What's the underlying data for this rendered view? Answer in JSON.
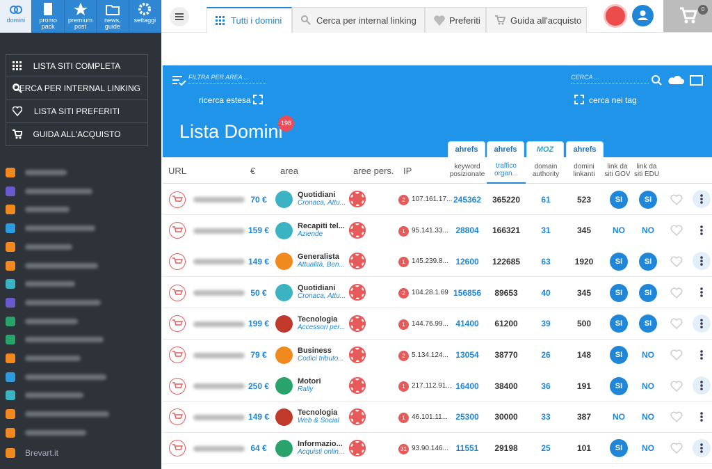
{
  "topnav": [
    "domini",
    "promo pack",
    "premium post",
    "news, guide",
    "settaggi"
  ],
  "menu": [
    "LISTA SITI COMPLETA",
    "CERCA PER INTERNAL LINKING",
    "LISTA SITI PREFERITI",
    "GUIDA ALL'ACQUISTO"
  ],
  "last_site": "Brevart.it",
  "tabs": [
    "Tutti i domini",
    "Cerca per internal linking",
    "Preferiti",
    "Guida all'acquisto"
  ],
  "cart_count": "0",
  "panel": {
    "filter_placeholder": "FILTRA PER AREA ...",
    "extended_search": "ricerca estesa",
    "search_placeholder": "CERCA ...",
    "tag_search": "cerca nei tag",
    "title": "Lista Domini",
    "count": "198"
  },
  "badges": [
    "ahrefs",
    "ahrefs",
    "MOZ",
    "ahrefs"
  ],
  "columns": [
    "URL",
    "€",
    "area",
    "aree pers.",
    "IP",
    "keyword posizionate",
    "traffico organ...",
    "domain authority",
    "domini linkanti",
    "link da siti GOV",
    "link da siti EDU"
  ],
  "rows": [
    [
      "70 €",
      "Quotidiani",
      "Cronaca, Attu...",
      "2",
      "107.161.17...",
      "245362",
      "365220",
      "61",
      "523",
      "SI",
      "SI"
    ],
    [
      "159 €",
      "Recapiti tel...",
      "Aziende",
      "1",
      "95.141.33...",
      "28804",
      "166321",
      "31",
      "345",
      "NO",
      "NO"
    ],
    [
      "149 €",
      "Generalista",
      "Attualità, Ben...",
      "1",
      "145.239.8...",
      "12600",
      "122685",
      "63",
      "1920",
      "SI",
      "SI"
    ],
    [
      "50 €",
      "Quotidiani",
      "Cronaca, Attu...",
      "2",
      "104.28.1.69",
      "156856",
      "89653",
      "40",
      "345",
      "SI",
      "SI"
    ],
    [
      "199 €",
      "Tecnologia",
      "Accessori per...",
      "1",
      "144.76.99...",
      "41400",
      "61200",
      "39",
      "500",
      "SI",
      "SI"
    ],
    [
      "79 €",
      "Business",
      "Codici tributo...",
      "2",
      "5.134.124...",
      "13054",
      "38770",
      "26",
      "148",
      "SI",
      "NO"
    ],
    [
      "250 €",
      "Motori",
      "Rally",
      "1",
      "217.112.91...",
      "16400",
      "38400",
      "36",
      "191",
      "SI",
      "NO"
    ],
    [
      "149 €",
      "Tecnologia",
      "Web & Social",
      "1",
      "46.101.11...",
      "25300",
      "30000",
      "33",
      "387",
      "NO",
      "NO"
    ],
    [
      "64 €",
      "Informazio...",
      "Acquisti onlin...",
      "31",
      "93.90.146...",
      "11551",
      "29198",
      "25",
      "101",
      "SI",
      "NO"
    ]
  ]
}
